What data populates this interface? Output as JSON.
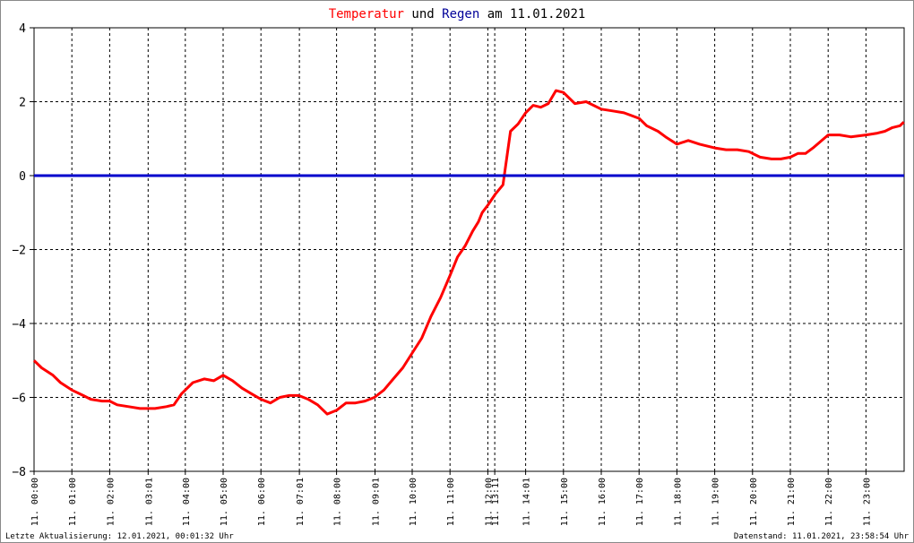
{
  "title": {
    "part1": "Temperatur",
    "part2": " und ",
    "part3": "Regen",
    "part4": " am 11.01.2021",
    "color_temp": "#ff0000",
    "color_rain": "#000099"
  },
  "footer": {
    "left": "Letzte Aktualisierung: 12.01.2021, 00:01:32 Uhr",
    "right": "Datenstand: 11.01.2021, 23:58:54 Uhr"
  },
  "chart_data": {
    "type": "line",
    "title": "Temperatur und Regen am 11.01.2021",
    "ylim": [
      -8,
      4
    ],
    "yticks": [
      4,
      2,
      0,
      -2,
      -4,
      -6,
      -8
    ],
    "xlim": [
      0,
      24
    ],
    "grid": true,
    "x_ticks": [
      {
        "h": 0.0,
        "label": "11. 00:00"
      },
      {
        "h": 1.0,
        "label": "11. 01:00"
      },
      {
        "h": 2.0,
        "label": "11. 02:00"
      },
      {
        "h": 3.017,
        "label": "11. 03:01"
      },
      {
        "h": 4.0,
        "label": "11. 04:00"
      },
      {
        "h": 5.0,
        "label": "11. 05:00"
      },
      {
        "h": 6.0,
        "label": "11. 06:00"
      },
      {
        "h": 7.017,
        "label": "11. 07:01"
      },
      {
        "h": 8.0,
        "label": "11. 08:00"
      },
      {
        "h": 9.017,
        "label": "11. 09:01"
      },
      {
        "h": 10.0,
        "label": "11. 10:00"
      },
      {
        "h": 11.0,
        "label": "11. 11:00"
      },
      {
        "h": 12.0,
        "label": "11. 12:00"
      },
      {
        "h": 12.183,
        "label": "11. 13:11"
      },
      {
        "h": 13.0,
        "label": "11. 14:01"
      },
      {
        "h": 14.0,
        "label": "11. 15:00"
      },
      {
        "h": 15.0,
        "label": "11. 16:00"
      },
      {
        "h": 16.0,
        "label": "11. 17:00"
      },
      {
        "h": 17.0,
        "label": "11. 18:00"
      },
      {
        "h": 18.0,
        "label": "11. 19:00"
      },
      {
        "h": 19.0,
        "label": "11. 20:00"
      },
      {
        "h": 20.0,
        "label": "11. 21:00"
      },
      {
        "h": 21.0,
        "label": "11. 22:00"
      },
      {
        "h": 22.0,
        "label": "11. 23:00"
      }
    ],
    "series": [
      {
        "name": "Temperatur",
        "color": "#ff0000",
        "x": [
          0.0,
          0.2,
          0.5,
          0.7,
          1.0,
          1.3,
          1.5,
          1.8,
          2.0,
          2.2,
          2.5,
          2.8,
          3.0,
          3.2,
          3.5,
          3.7,
          3.9,
          4.2,
          4.5,
          4.75,
          5.0,
          5.25,
          5.5,
          5.75,
          6.0,
          6.25,
          6.5,
          6.75,
          7.0,
          7.25,
          7.5,
          7.75,
          8.0,
          8.25,
          8.5,
          8.75,
          9.0,
          9.25,
          9.5,
          9.75,
          10.0,
          10.25,
          10.5,
          10.75,
          11.0,
          11.2,
          11.4,
          11.6,
          11.75,
          11.85,
          12.0,
          12.2,
          12.4,
          12.6,
          12.8,
          13.0,
          13.2,
          13.4,
          13.6,
          13.8,
          14.0,
          14.3,
          14.6,
          15.0,
          15.3,
          15.6,
          16.0,
          16.2,
          16.5,
          16.7,
          17.0,
          17.3,
          17.6,
          18.0,
          18.3,
          18.6,
          18.9,
          19.2,
          19.5,
          19.75,
          20.0,
          20.2,
          20.4,
          20.6,
          21.0,
          21.3,
          21.6,
          22.0,
          22.3,
          22.5,
          22.7,
          22.9,
          23.0
        ],
        "values": [
          -5.0,
          -5.2,
          -5.4,
          -5.6,
          -5.8,
          -5.95,
          -6.05,
          -6.1,
          -6.1,
          -6.2,
          -6.25,
          -6.3,
          -6.3,
          -6.3,
          -6.25,
          -6.2,
          -5.9,
          -5.6,
          -5.5,
          -5.55,
          -5.4,
          -5.55,
          -5.75,
          -5.9,
          -6.05,
          -6.15,
          -6.0,
          -5.95,
          -5.95,
          -6.05,
          -6.2,
          -6.45,
          -6.35,
          -6.15,
          -6.15,
          -6.1,
          -6.0,
          -5.8,
          -5.5,
          -5.2,
          -4.8,
          -4.4,
          -3.8,
          -3.3,
          -2.7,
          -2.2,
          -1.9,
          -1.5,
          -1.25,
          -1.0,
          -0.8,
          -0.5,
          -0.25,
          1.2,
          1.4,
          1.7,
          1.9,
          1.85,
          1.95,
          2.3,
          2.25,
          1.95,
          2.0,
          1.8,
          1.75,
          1.7,
          1.55,
          1.35,
          1.2,
          1.05,
          0.85,
          0.95,
          0.85,
          0.75,
          0.7,
          0.7,
          0.65,
          0.5,
          0.45,
          0.45,
          0.5,
          0.6,
          0.6,
          0.75,
          1.1,
          1.1,
          1.05,
          1.1,
          1.15,
          1.2,
          1.3,
          1.35,
          1.45
        ]
      },
      {
        "name": "Regen",
        "color": "#0000cc",
        "x": [
          0,
          23.0
        ],
        "values": [
          0,
          0
        ]
      }
    ]
  }
}
